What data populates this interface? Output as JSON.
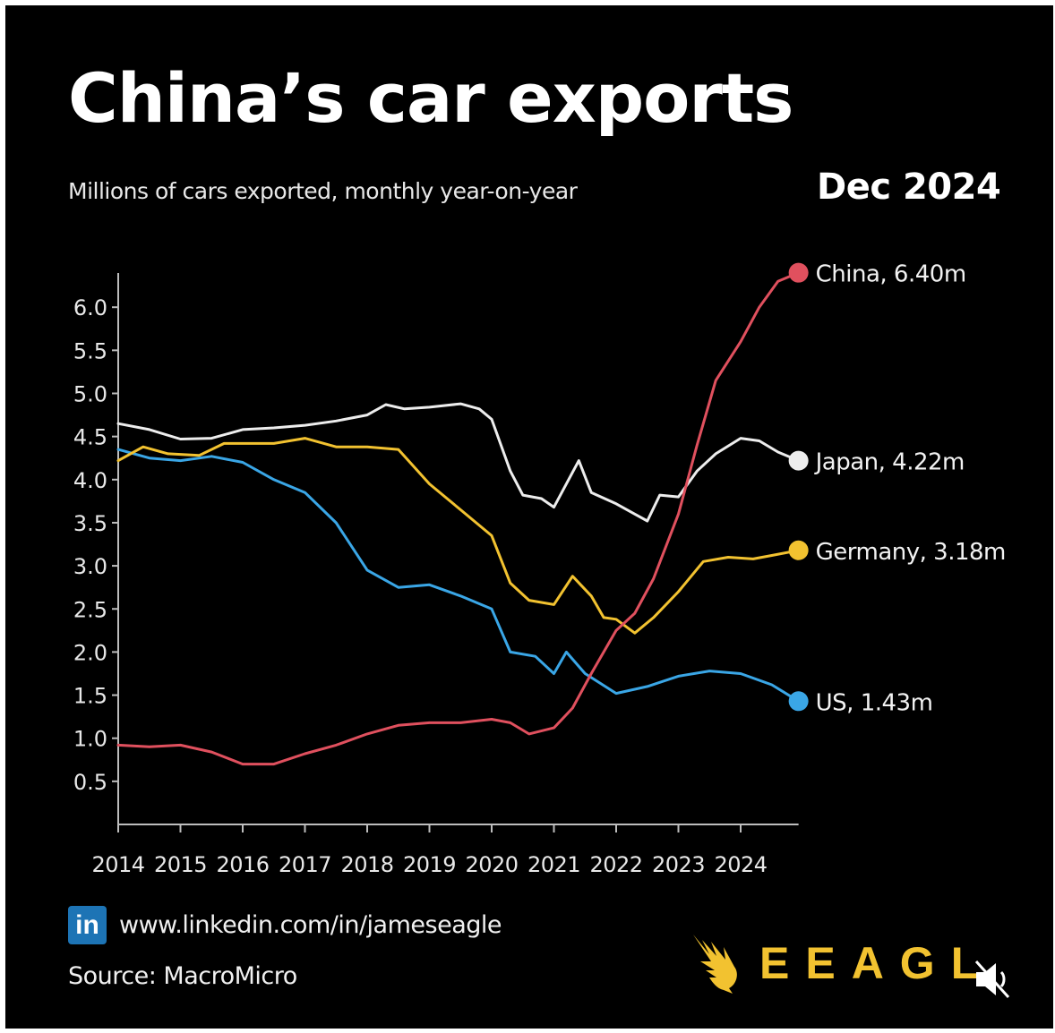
{
  "header": {
    "title": "China’s car exports",
    "subtitle": "Millions of cars exported, monthly year-on-year",
    "date_label": "Dec 2024"
  },
  "footer": {
    "linkedin_icon": "in",
    "linkedin_url": "www.linkedin.com/in/jameseagle",
    "source": "Source: MacroMicro",
    "brand": "EEAGLE",
    "brand_visible_text": "EEAGL",
    "brand_color": "#f2c230",
    "overlay_icon": "muted-speaker-icon"
  },
  "chart_data": {
    "type": "line",
    "title": "China’s car exports",
    "subtitle": "Millions of cars exported, monthly year-on-year",
    "xlabel": "",
    "ylabel": "",
    "xlim": [
      2014,
      2024.93
    ],
    "ylim": [
      0,
      6.4
    ],
    "x_ticks": [
      "2014",
      "2015",
      "2016",
      "2017",
      "2018",
      "2019",
      "2020",
      "2021",
      "2022",
      "2023",
      "2024"
    ],
    "y_ticks": [
      "0.5",
      "1.0",
      "1.5",
      "2.0",
      "2.5",
      "3.0",
      "3.5",
      "4.0",
      "4.5",
      "5.0",
      "5.5",
      "6.0"
    ],
    "grid": false,
    "legend": "end-of-line labels (right)",
    "series": [
      {
        "name": "China",
        "color": "#e0505e",
        "end_label": "China, 6.40m",
        "end_value": 6.4,
        "x": [
          2014,
          2014.5,
          2015,
          2015.5,
          2016,
          2016.5,
          2017,
          2017.5,
          2018,
          2018.5,
          2019,
          2019.5,
          2020,
          2020.3,
          2020.6,
          2021,
          2021.3,
          2021.6,
          2022,
          2022.3,
          2022.6,
          2023,
          2023.3,
          2023.6,
          2024,
          2024.3,
          2024.6,
          2024.93
        ],
        "values": [
          0.92,
          0.9,
          0.92,
          0.84,
          0.7,
          0.7,
          0.82,
          0.92,
          1.05,
          1.15,
          1.18,
          1.18,
          1.22,
          1.18,
          1.05,
          1.12,
          1.35,
          1.75,
          2.25,
          2.45,
          2.85,
          3.6,
          4.4,
          5.15,
          5.6,
          6.0,
          6.3,
          6.4
        ]
      },
      {
        "name": "Japan",
        "color": "#ededed",
        "end_label": "Japan, 4.22m",
        "end_value": 4.22,
        "x": [
          2014,
          2014.5,
          2015,
          2015.5,
          2016,
          2016.5,
          2017,
          2017.5,
          2018,
          2018.3,
          2018.6,
          2019,
          2019.5,
          2019.8,
          2020,
          2020.3,
          2020.5,
          2020.8,
          2021,
          2021.2,
          2021.4,
          2021.6,
          2022,
          2022.3,
          2022.5,
          2022.7,
          2023,
          2023.3,
          2023.6,
          2024,
          2024.3,
          2024.6,
          2024.93
        ],
        "values": [
          4.65,
          4.58,
          4.47,
          4.48,
          4.58,
          4.6,
          4.63,
          4.68,
          4.75,
          4.87,
          4.82,
          4.84,
          4.88,
          4.82,
          4.7,
          4.1,
          3.82,
          3.78,
          3.68,
          3.95,
          4.22,
          3.85,
          3.72,
          3.6,
          3.52,
          3.82,
          3.8,
          4.1,
          4.3,
          4.48,
          4.45,
          4.32,
          4.22
        ]
      },
      {
        "name": "Germany",
        "color": "#f2c230",
        "end_label": "Germany, 3.18m",
        "end_value": 3.18,
        "x": [
          2014,
          2014.4,
          2014.8,
          2015.3,
          2015.7,
          2016.5,
          2017,
          2017.5,
          2018,
          2018.5,
          2019,
          2019.5,
          2020,
          2020.3,
          2020.6,
          2021,
          2021.3,
          2021.6,
          2021.8,
          2022,
          2022.3,
          2022.6,
          2023,
          2023.4,
          2023.8,
          2024.2,
          2024.5,
          2024.93
        ],
        "values": [
          4.22,
          4.38,
          4.3,
          4.28,
          4.42,
          4.42,
          4.48,
          4.38,
          4.38,
          4.35,
          3.95,
          3.65,
          3.35,
          2.8,
          2.6,
          2.55,
          2.88,
          2.65,
          2.4,
          2.38,
          2.22,
          2.4,
          2.7,
          3.05,
          3.1,
          3.08,
          3.12,
          3.18
        ]
      },
      {
        "name": "US",
        "color": "#3aa6e6",
        "end_label": "US, 1.43m",
        "end_value": 1.43,
        "x": [
          2014,
          2014.5,
          2015,
          2015.5,
          2016,
          2016.5,
          2017,
          2017.5,
          2018,
          2018.5,
          2019,
          2019.5,
          2020,
          2020.3,
          2020.7,
          2021,
          2021.2,
          2021.5,
          2022,
          2022.5,
          2023,
          2023.5,
          2024,
          2024.5,
          2024.93
        ],
        "values": [
          4.35,
          4.25,
          4.22,
          4.27,
          4.2,
          4.0,
          3.85,
          3.5,
          2.95,
          2.75,
          2.78,
          2.65,
          2.5,
          2.0,
          1.95,
          1.75,
          2.0,
          1.75,
          1.52,
          1.6,
          1.72,
          1.78,
          1.75,
          1.62,
          1.43
        ]
      }
    ]
  }
}
